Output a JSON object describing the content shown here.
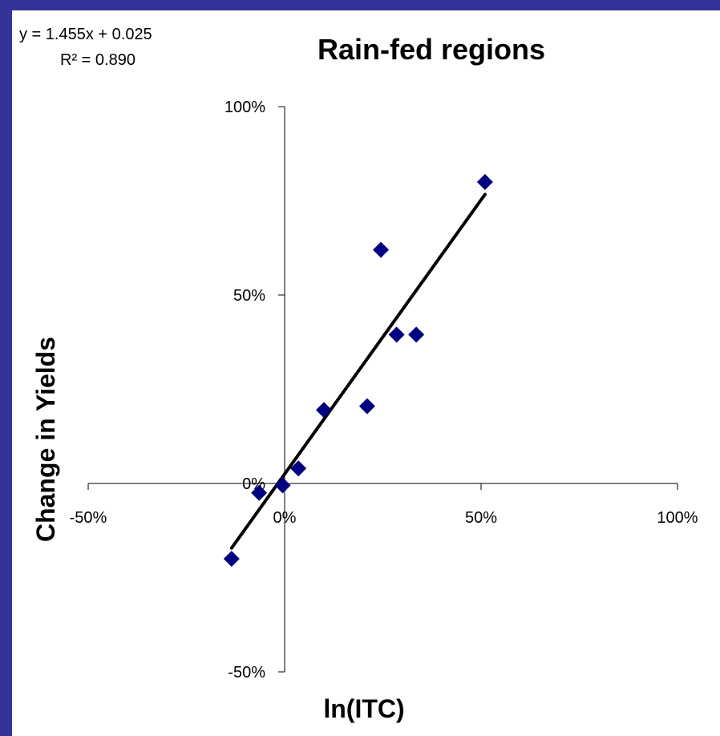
{
  "chart_data": {
    "type": "scatter",
    "title": "Rain-fed regions",
    "xlabel": "ln(ITC)",
    "ylabel": "Change in Yields",
    "xlim": [
      -0.5,
      1.0
    ],
    "ylim": [
      -0.5,
      1.0
    ],
    "xticks": [
      {
        "value": -0.5,
        "label": "-50%"
      },
      {
        "value": 0,
        "label": "0%"
      },
      {
        "value": 0.5,
        "label": "50%"
      },
      {
        "value": 1.0,
        "label": "100%"
      }
    ],
    "yticks": [
      {
        "value": -0.5,
        "label": "-50%"
      },
      {
        "value": 0,
        "label": "0%"
      },
      {
        "value": 0.5,
        "label": "50%"
      },
      {
        "value": 1.0,
        "label": "100%"
      }
    ],
    "points": [
      {
        "x": -0.135,
        "y": -0.2
      },
      {
        "x": -0.065,
        "y": -0.025
      },
      {
        "x": -0.005,
        "y": -0.005
      },
      {
        "x": 0.035,
        "y": 0.04
      },
      {
        "x": 0.1,
        "y": 0.195
      },
      {
        "x": 0.21,
        "y": 0.205
      },
      {
        "x": 0.245,
        "y": 0.62
      },
      {
        "x": 0.285,
        "y": 0.395
      },
      {
        "x": 0.335,
        "y": 0.395
      },
      {
        "x": 0.51,
        "y": 0.8
      }
    ],
    "trendline": {
      "slope": 1.455,
      "intercept": 0.025,
      "x_range": [
        -0.135,
        0.51
      ],
      "equation": "y = 1.455x + 0.025",
      "r_squared": "R² = 0.890"
    },
    "marker_color": "#000080",
    "line_color": "#000000",
    "grid": false,
    "legend": "none"
  }
}
